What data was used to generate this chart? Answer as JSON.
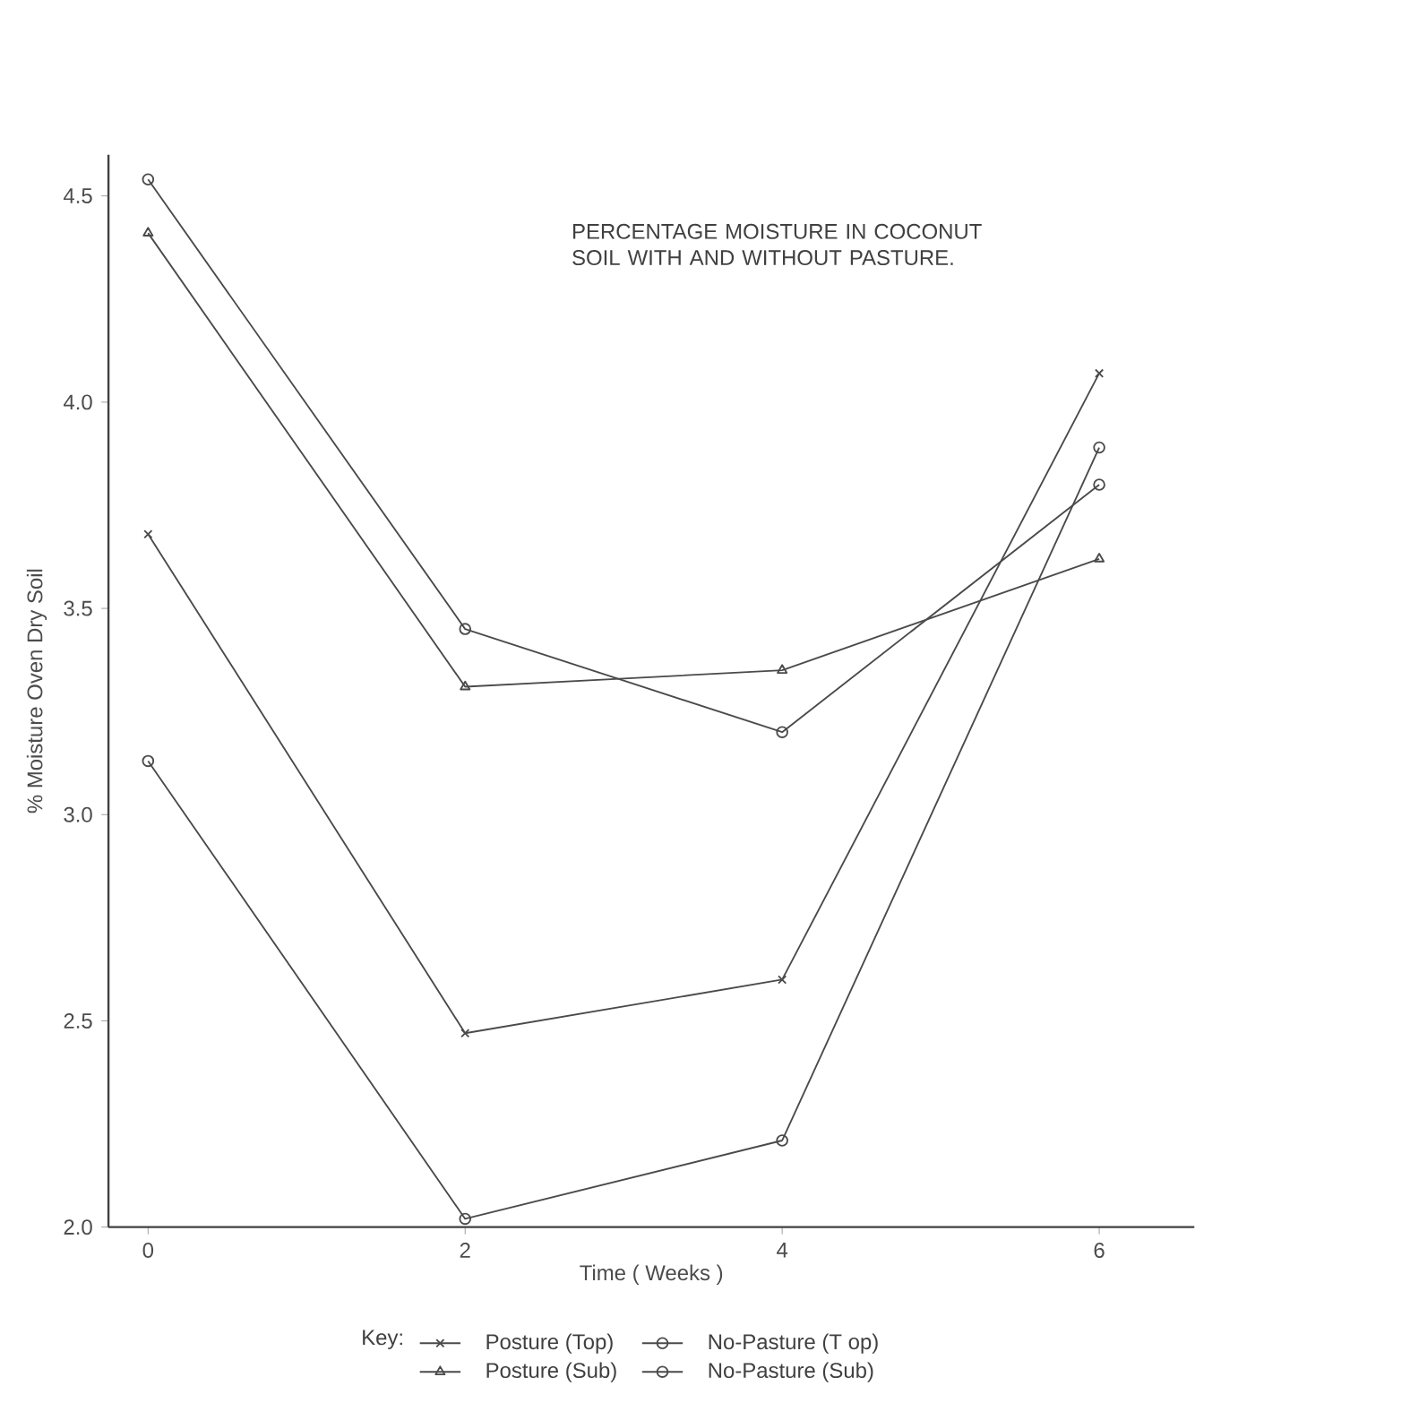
{
  "chart_data": {
    "type": "line",
    "title": "PERCENTAGE MOISTURE IN COCONUT SOIL WITH AND WITHOUT PASTURE.",
    "xlabel": "Time ( Weeks )",
    "ylabel": "% Moisture Oven Dry Soil",
    "legend_title": "Key:",
    "x": [
      0,
      2,
      4,
      6
    ],
    "series": [
      {
        "name": "Posture (Top)",
        "color": "#4a4a4a",
        "marker": "cross",
        "values": [
          3.68,
          2.47,
          2.6,
          4.07
        ]
      },
      {
        "name": "No-Pasture (T op)",
        "color": "#4a4a4a",
        "marker": "circle",
        "values": [
          3.13,
          2.02,
          2.21,
          3.89
        ]
      },
      {
        "name": "Posture (Sub)",
        "color": "#4a4a4a",
        "marker": "triangle",
        "values": [
          4.41,
          3.31,
          3.35,
          3.62
        ]
      },
      {
        "name": "No-Pasture (Sub)",
        "color": "#4a4a4a",
        "marker": "circle",
        "values": [
          4.54,
          3.45,
          3.2,
          3.8
        ]
      }
    ],
    "xlim": [
      -0.25,
      6.6
    ],
    "ylim": [
      2.0,
      4.6
    ],
    "xticks": [
      0,
      2,
      4,
      6
    ],
    "yticks": [
      {
        "value": 2.0,
        "label": "2.0"
      },
      {
        "value": 2.5,
        "label": "2.5"
      },
      {
        "value": 3.0,
        "label": "3.0"
      },
      {
        "value": 3.5,
        "label": "3.5"
      },
      {
        "value": 4.0,
        "label": "4.0"
      },
      {
        "value": 4.5,
        "label": "4.5"
      }
    ],
    "legend": "bottom",
    "grid": false,
    "line_style": "solid"
  }
}
